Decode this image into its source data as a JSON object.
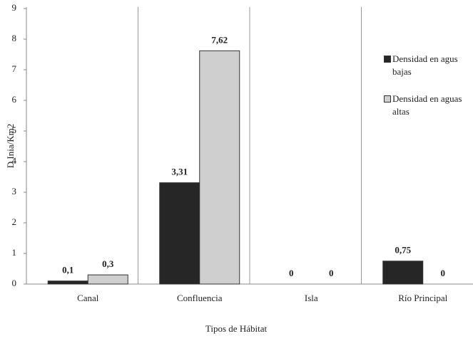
{
  "chart_data": {
    "type": "bar",
    "x_label": "Tipos de Hábitat",
    "y_label": "D Inia/Km2",
    "categories": [
      "Canal",
      "Confluencia",
      "Isla",
      "Río Principal"
    ],
    "series": [
      {
        "name": "Densidad en agus bajas",
        "color": "#262626",
        "values": [
          0.1,
          3.31,
          0,
          0.75
        ],
        "value_labels": [
          "0,1",
          "3,31",
          "0",
          "0,75"
        ]
      },
      {
        "name": "Densidad en aguas altas",
        "color": "#cfcfcf",
        "values": [
          0.3,
          7.62,
          0,
          0
        ],
        "value_labels": [
          "0,3",
          "7,62",
          "0",
          "0"
        ]
      }
    ],
    "ylim": [
      0,
      9
    ],
    "yticks": [
      0,
      1,
      2,
      3,
      4,
      5,
      6,
      7,
      8,
      9
    ],
    "legend": "right"
  }
}
